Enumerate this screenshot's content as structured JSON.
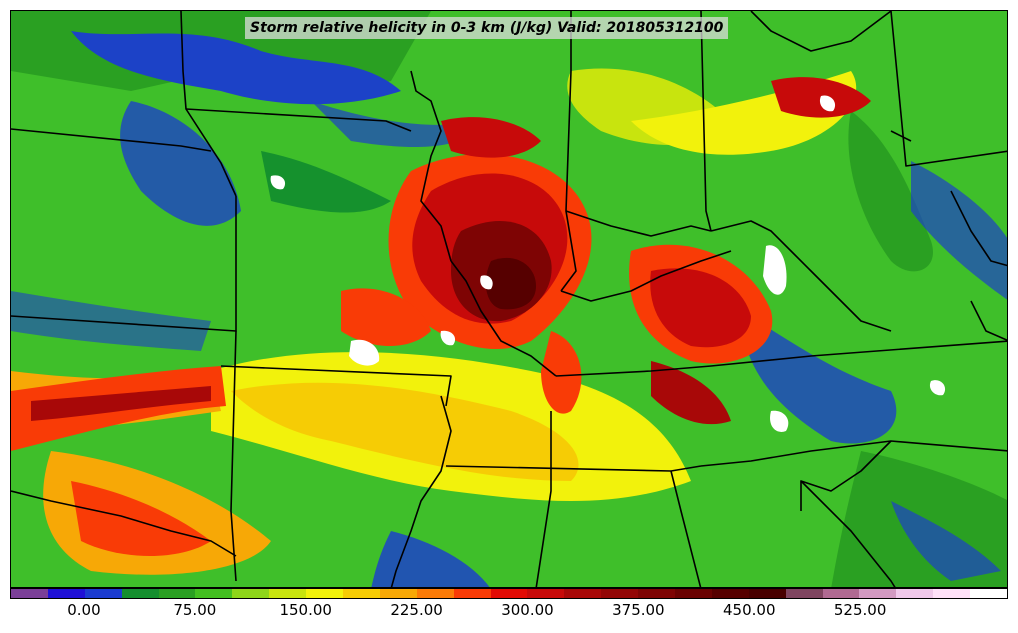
{
  "title": "Storm relative helicity in 0-3 km (J/kg) Valid: 201805312100",
  "colorbar": {
    "colors": [
      "#7b3f98",
      "#1f10d6",
      "#1b3bd0",
      "#148f2e",
      "#2a9f22",
      "#43bf20",
      "#8ed51a",
      "#c8e40e",
      "#f2f20c",
      "#f6cc05",
      "#f7a806",
      "#fb7b07",
      "#f93b06",
      "#e20b05",
      "#c70a0a",
      "#a80808",
      "#930606",
      "#7e0404",
      "#6a0202",
      "#560000",
      "#480000",
      "#7f4560",
      "#b06a92",
      "#d39ac2",
      "#f0c8ea",
      "#ffe1f8",
      "#ffffff"
    ],
    "labels": [
      "0.00",
      "75.00",
      "150.00",
      "225.00",
      "300.00",
      "375.00",
      "450.00",
      "525.00"
    ]
  }
}
